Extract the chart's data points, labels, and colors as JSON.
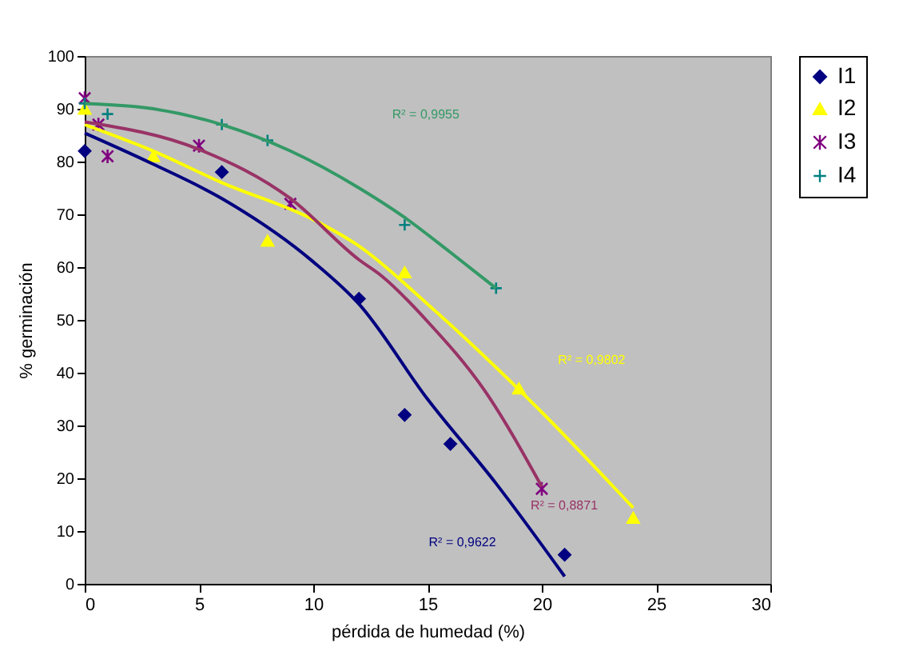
{
  "chart_data": {
    "type": "scatter",
    "xlabel": "pérdida de humedad (%)",
    "ylabel": "% germinación",
    "xlim": [
      0,
      30
    ],
    "xticks": [
      0,
      5,
      10,
      15,
      20,
      25,
      30
    ],
    "ylim": [
      0,
      100
    ],
    "yticks": [
      0,
      10,
      20,
      30,
      40,
      50,
      60,
      70,
      80,
      90,
      100
    ],
    "grid": false,
    "legend": "right",
    "series": [
      {
        "name": "I1",
        "color": "#000080",
        "marker": "diamond",
        "x": [
          0,
          6,
          12,
          14,
          16,
          21
        ],
        "values": [
          82,
          78,
          54,
          32,
          26.5,
          5.5
        ]
      },
      {
        "name": "I2",
        "color": "#ffff00",
        "marker": "triangle",
        "x": [
          0,
          3,
          8,
          14,
          19,
          24
        ],
        "values": [
          90,
          81,
          65,
          59,
          37,
          12.5
        ]
      },
      {
        "name": "I3",
        "color": "#800080",
        "marker": "cross",
        "x": [
          0,
          0.6,
          1,
          5,
          9,
          20
        ],
        "values": [
          92,
          87,
          81,
          83,
          72,
          18
        ]
      },
      {
        "name": "I4",
        "color": "#008080",
        "marker": "cross",
        "x": [
          0,
          1,
          6,
          8,
          14,
          18
        ],
        "values": [
          91,
          89,
          87,
          84,
          68,
          56
        ]
      },
      {
        "type": "line",
        "color": "#000080",
        "x": [
          0,
          3,
          6,
          10,
          12,
          15,
          18,
          21
        ],
        "values": [
          85.4,
          79.5,
          73,
          61,
          53,
          35,
          19,
          1.4
        ]
      },
      {
        "type": "line",
        "color": "#ffff00",
        "x": [
          0,
          3,
          6,
          10,
          12,
          15,
          20,
          24
        ],
        "values": [
          87,
          82,
          76,
          69,
          64,
          53,
          32.5,
          14.4
        ]
      },
      {
        "type": "line",
        "color": "#993366",
        "x": [
          0,
          5,
          9,
          12,
          13,
          15,
          17.5,
          20
        ],
        "values": [
          87.5,
          82.3,
          73,
          61.4,
          58.3,
          49.7,
          36.6,
          18.4
        ]
      },
      {
        "type": "line",
        "color": "#339966",
        "x": [
          0,
          3,
          6,
          9,
          12,
          14,
          16,
          18
        ],
        "values": [
          91,
          90,
          87,
          82,
          75,
          69.4,
          62.8,
          56
        ]
      }
    ],
    "annotations": [
      "R² = 0,9622",
      "R² = 0,9802",
      "R² = 0,8871",
      "R² = 0,9955"
    ]
  }
}
